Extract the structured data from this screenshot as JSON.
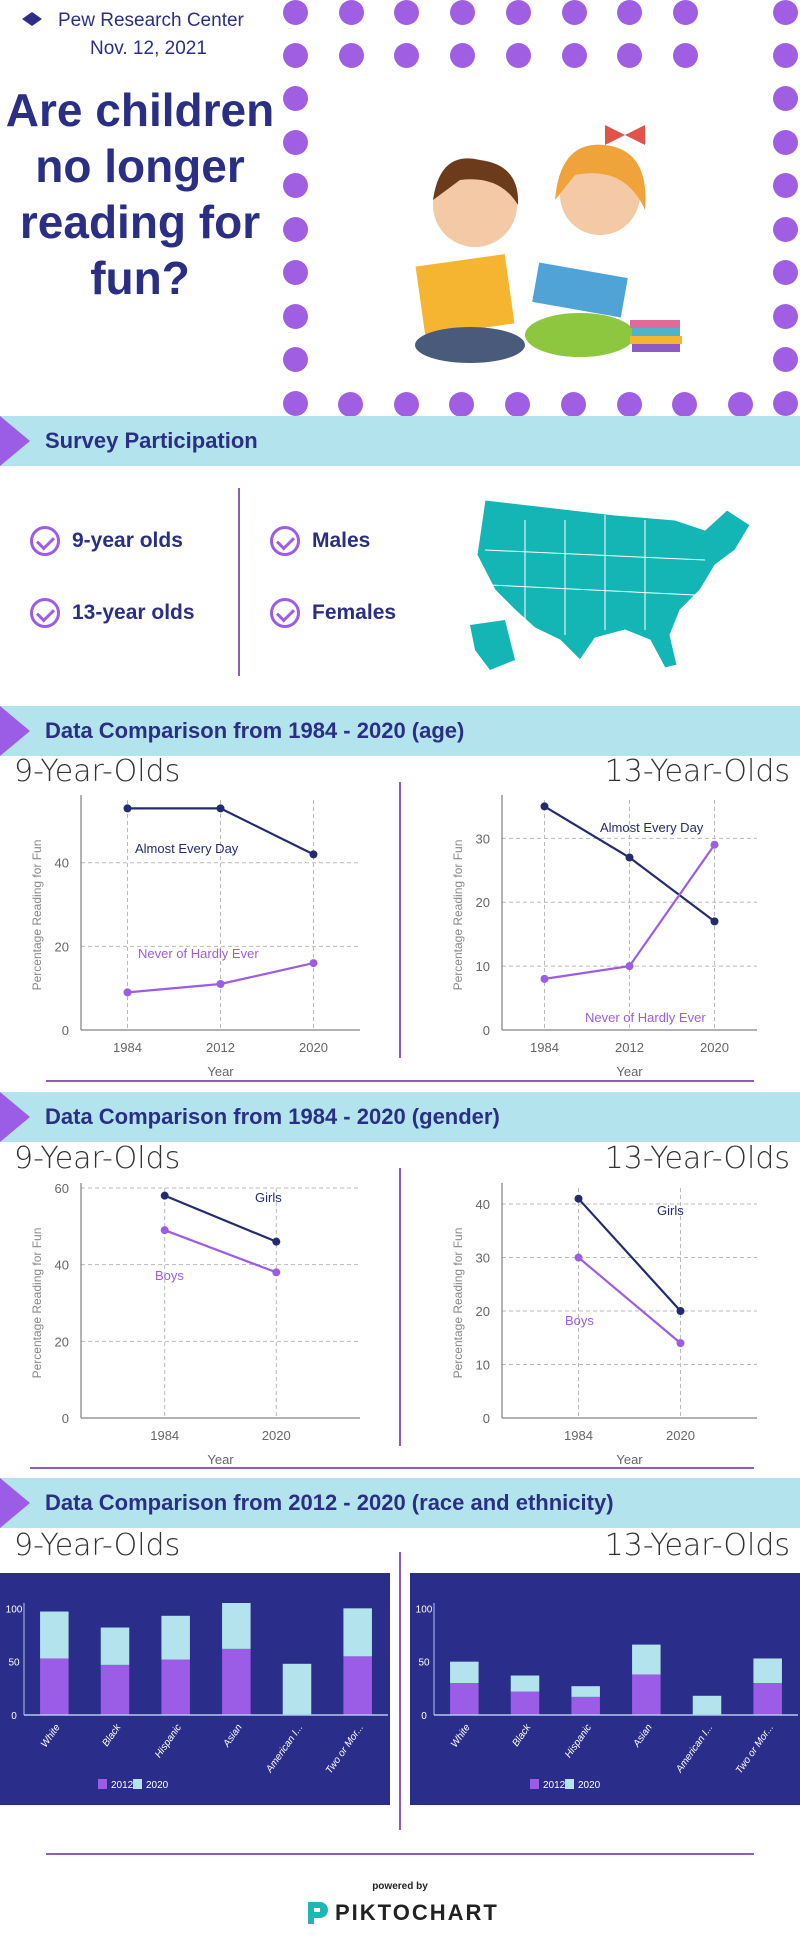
{
  "header": {
    "source": "Pew Research Center",
    "date": "Nov. 12, 2021",
    "title": "Are children no longer reading for fun?",
    "logo_icon": "diamond-icon",
    "accent": "#a05fe2"
  },
  "sections": {
    "survey": "Survey Participation",
    "age": "Data Comparison from 1984 - 2020 (age)",
    "gender": "Data Comparison from 1984 - 2020 (gender)",
    "race": "Data Comparison from 2012 - 2020 (race and ethnicity)"
  },
  "participation": {
    "items": [
      "9-year olds",
      "13-year olds",
      "Males",
      "Females"
    ],
    "map": "us-map-icon"
  },
  "labels": {
    "nine": "9-Year-Olds",
    "thirteen": "13-Year-Olds"
  },
  "footer": {
    "powered": "powered by",
    "brand": "PIKTOCHART"
  },
  "chart_data": [
    {
      "id": "age9",
      "type": "line",
      "title": "9-Year-Olds",
      "xlabel": "Year",
      "ylabel": "Percentage Reading for Fun",
      "categories": [
        "1984",
        "2012",
        "2020"
      ],
      "ylim": [
        0,
        55
      ],
      "yticks": [
        0,
        20,
        40
      ],
      "grid": true,
      "series": [
        {
          "name": "Almost Every Day",
          "values": [
            53,
            53,
            42
          ],
          "color": "#252b6e"
        },
        {
          "name": "Never of Hardly Ever",
          "values": [
            9,
            11,
            16
          ],
          "color": "#9b5de5"
        }
      ]
    },
    {
      "id": "age13",
      "type": "line",
      "title": "13-Year-Olds",
      "xlabel": "Year",
      "ylabel": "Percentage Reading for Fun",
      "categories": [
        "1984",
        "2012",
        "2020"
      ],
      "ylim": [
        0,
        36
      ],
      "yticks": [
        0,
        10,
        20,
        30
      ],
      "grid": true,
      "series": [
        {
          "name": "Almost Every Day",
          "values": [
            35,
            27,
            17
          ],
          "color": "#252b6e"
        },
        {
          "name": "Never of Hardly Ever",
          "values": [
            8,
            10,
            29
          ],
          "color": "#9b5de5"
        }
      ]
    },
    {
      "id": "gen9",
      "type": "line",
      "title": "9-Year-Olds",
      "xlabel": "Year",
      "ylabel": "Percentage Reading for Fun",
      "categories": [
        "1984",
        "2020"
      ],
      "ylim": [
        0,
        60
      ],
      "yticks": [
        0,
        20,
        40,
        60
      ],
      "grid": true,
      "series": [
        {
          "name": "Girls",
          "values": [
            58,
            46
          ],
          "color": "#252b6e"
        },
        {
          "name": "Boys",
          "values": [
            49,
            38
          ],
          "color": "#9b5de5"
        }
      ]
    },
    {
      "id": "gen13",
      "type": "line",
      "title": "13-Year-Olds",
      "xlabel": "Year",
      "ylabel": "Percentage Reading for Fun",
      "categories": [
        "1984",
        "2020"
      ],
      "ylim": [
        0,
        43
      ],
      "yticks": [
        0,
        10,
        20,
        30,
        40
      ],
      "grid": true,
      "series": [
        {
          "name": "Girls",
          "values": [
            41,
            20
          ],
          "color": "#252b6e"
        },
        {
          "name": "Boys",
          "values": [
            30,
            14
          ],
          "color": "#9b5de5"
        }
      ]
    },
    {
      "id": "race9",
      "type": "bar",
      "stacked": true,
      "title": "9-Year-Olds",
      "categories": [
        "White",
        "Black",
        "Hispanic",
        "Asian",
        "American I...",
        "Two or Mor..."
      ],
      "ylim": [
        0,
        105
      ],
      "yticks": [
        0,
        50,
        100
      ],
      "legend": "bottom",
      "series": [
        {
          "name": "2012",
          "values": [
            53,
            47,
            52,
            62,
            0,
            55
          ],
          "color": "#9b5de5"
        },
        {
          "name": "2020",
          "values": [
            44,
            35,
            41,
            43,
            48,
            45
          ],
          "color": "#b3e4ee"
        }
      ]
    },
    {
      "id": "race13",
      "type": "bar",
      "stacked": true,
      "title": "13-Year-Olds",
      "categories": [
        "White",
        "Black",
        "Hispanic",
        "Asian",
        "American I...",
        "Two or Mor..."
      ],
      "ylim": [
        0,
        105
      ],
      "yticks": [
        0,
        50,
        100
      ],
      "legend": "bottom",
      "series": [
        {
          "name": "2012",
          "values": [
            30,
            22,
            17,
            38,
            0,
            30
          ],
          "color": "#9b5de5"
        },
        {
          "name": "2020",
          "values": [
            20,
            15,
            10,
            28,
            18,
            23
          ],
          "color": "#b3e4ee"
        }
      ]
    }
  ]
}
